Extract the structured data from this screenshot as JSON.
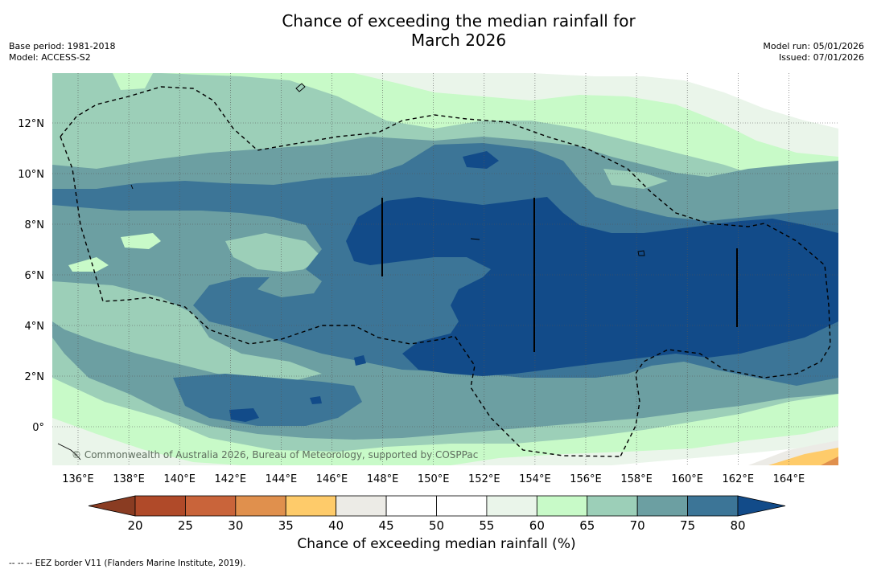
{
  "title": {
    "line1": "Chance of exceeding the median rainfall for",
    "line2": "March 2026"
  },
  "meta_left": {
    "base_period": "Base period: 1981-2018",
    "model": "Model: ACCESS-S2"
  },
  "meta_right": {
    "model_run": "Model run: 05/01/2026",
    "issued": "Issued: 07/01/2026"
  },
  "map": {
    "lon_labels": [
      "136°E",
      "138°E",
      "140°E",
      "142°E",
      "144°E",
      "146°E",
      "148°E",
      "150°E",
      "152°E",
      "154°E",
      "156°E",
      "158°E",
      "160°E",
      "162°E",
      "164°E"
    ],
    "lat_labels": [
      "12°N",
      "10°N",
      "8°N",
      "6°N",
      "4°N",
      "2°N",
      "0°"
    ],
    "copyright": "© Commonwealth of Australia 2026, Bureau of Meteorology, supported by COSPPac"
  },
  "colorbar": {
    "title": "Chance of exceeding median rainfall (%)",
    "ticks": [
      "20",
      "25",
      "30",
      "35",
      "40",
      "45",
      "50",
      "55",
      "60",
      "65",
      "70",
      "75",
      "80"
    ],
    "colors": [
      "#b04a29",
      "#c9643a",
      "#e0904d",
      "#fecb6a",
      "#ecebe6",
      "#ffffff",
      "#ffffff",
      "#eaf5ea",
      "#c8fac8",
      "#9ccfb8",
      "#6c9fa2",
      "#3c7597",
      "#124b89"
    ],
    "under_color": "#8a3c22",
    "over_color": "#124b89"
  },
  "footnote": "--  --  -- EEZ border V11 (Flanders Marine Institute, 2019)."
}
